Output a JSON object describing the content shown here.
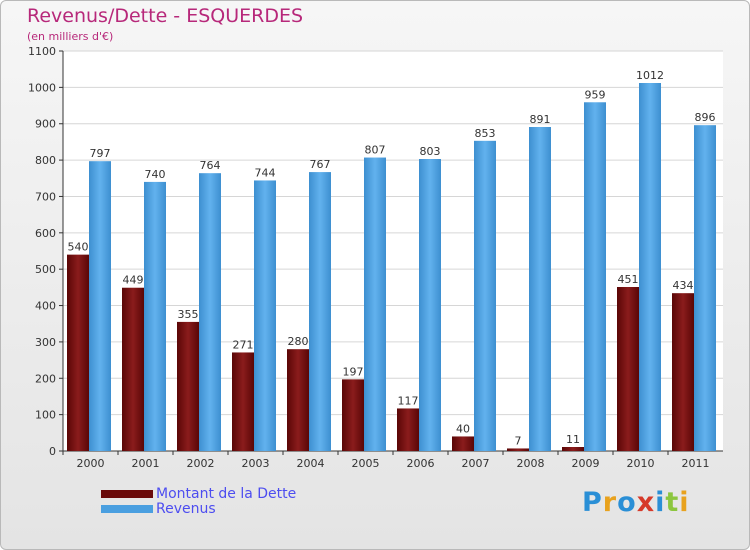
{
  "title": "Revenus/Dette - ESQUERDES",
  "subtitle": "(en milliers d'€)",
  "logo": {
    "text": "Proxiti",
    "colors": [
      "#2a8fd6",
      "#e8a21e",
      "#2a8fd6",
      "#d63a2a",
      "#2a8fd6",
      "#8cc63f",
      "#e8a21e"
    ]
  },
  "colors": {
    "dette": "#7a1010",
    "revenus": "#4a9fe0",
    "title": "#b7287a",
    "legend_text": "#4d4df0"
  },
  "chart_data": {
    "type": "bar",
    "categories": [
      "2000",
      "2001",
      "2002",
      "2003",
      "2004",
      "2005",
      "2006",
      "2007",
      "2008",
      "2009",
      "2010",
      "2011"
    ],
    "series": [
      {
        "name": "Montant de la Dette",
        "values": [
          540,
          449,
          355,
          271,
          280,
          197,
          117,
          40,
          7,
          11,
          451,
          434
        ]
      },
      {
        "name": "Revenus",
        "values": [
          797,
          740,
          764,
          744,
          767,
          807,
          803,
          853,
          891,
          959,
          1012,
          896
        ]
      }
    ],
    "yticks": [
      0,
      100,
      200,
      300,
      400,
      500,
      600,
      700,
      800,
      900,
      1000,
      1100
    ],
    "ylim": [
      0,
      1100
    ],
    "grid": true,
    "legend_position": "bottom-left"
  }
}
